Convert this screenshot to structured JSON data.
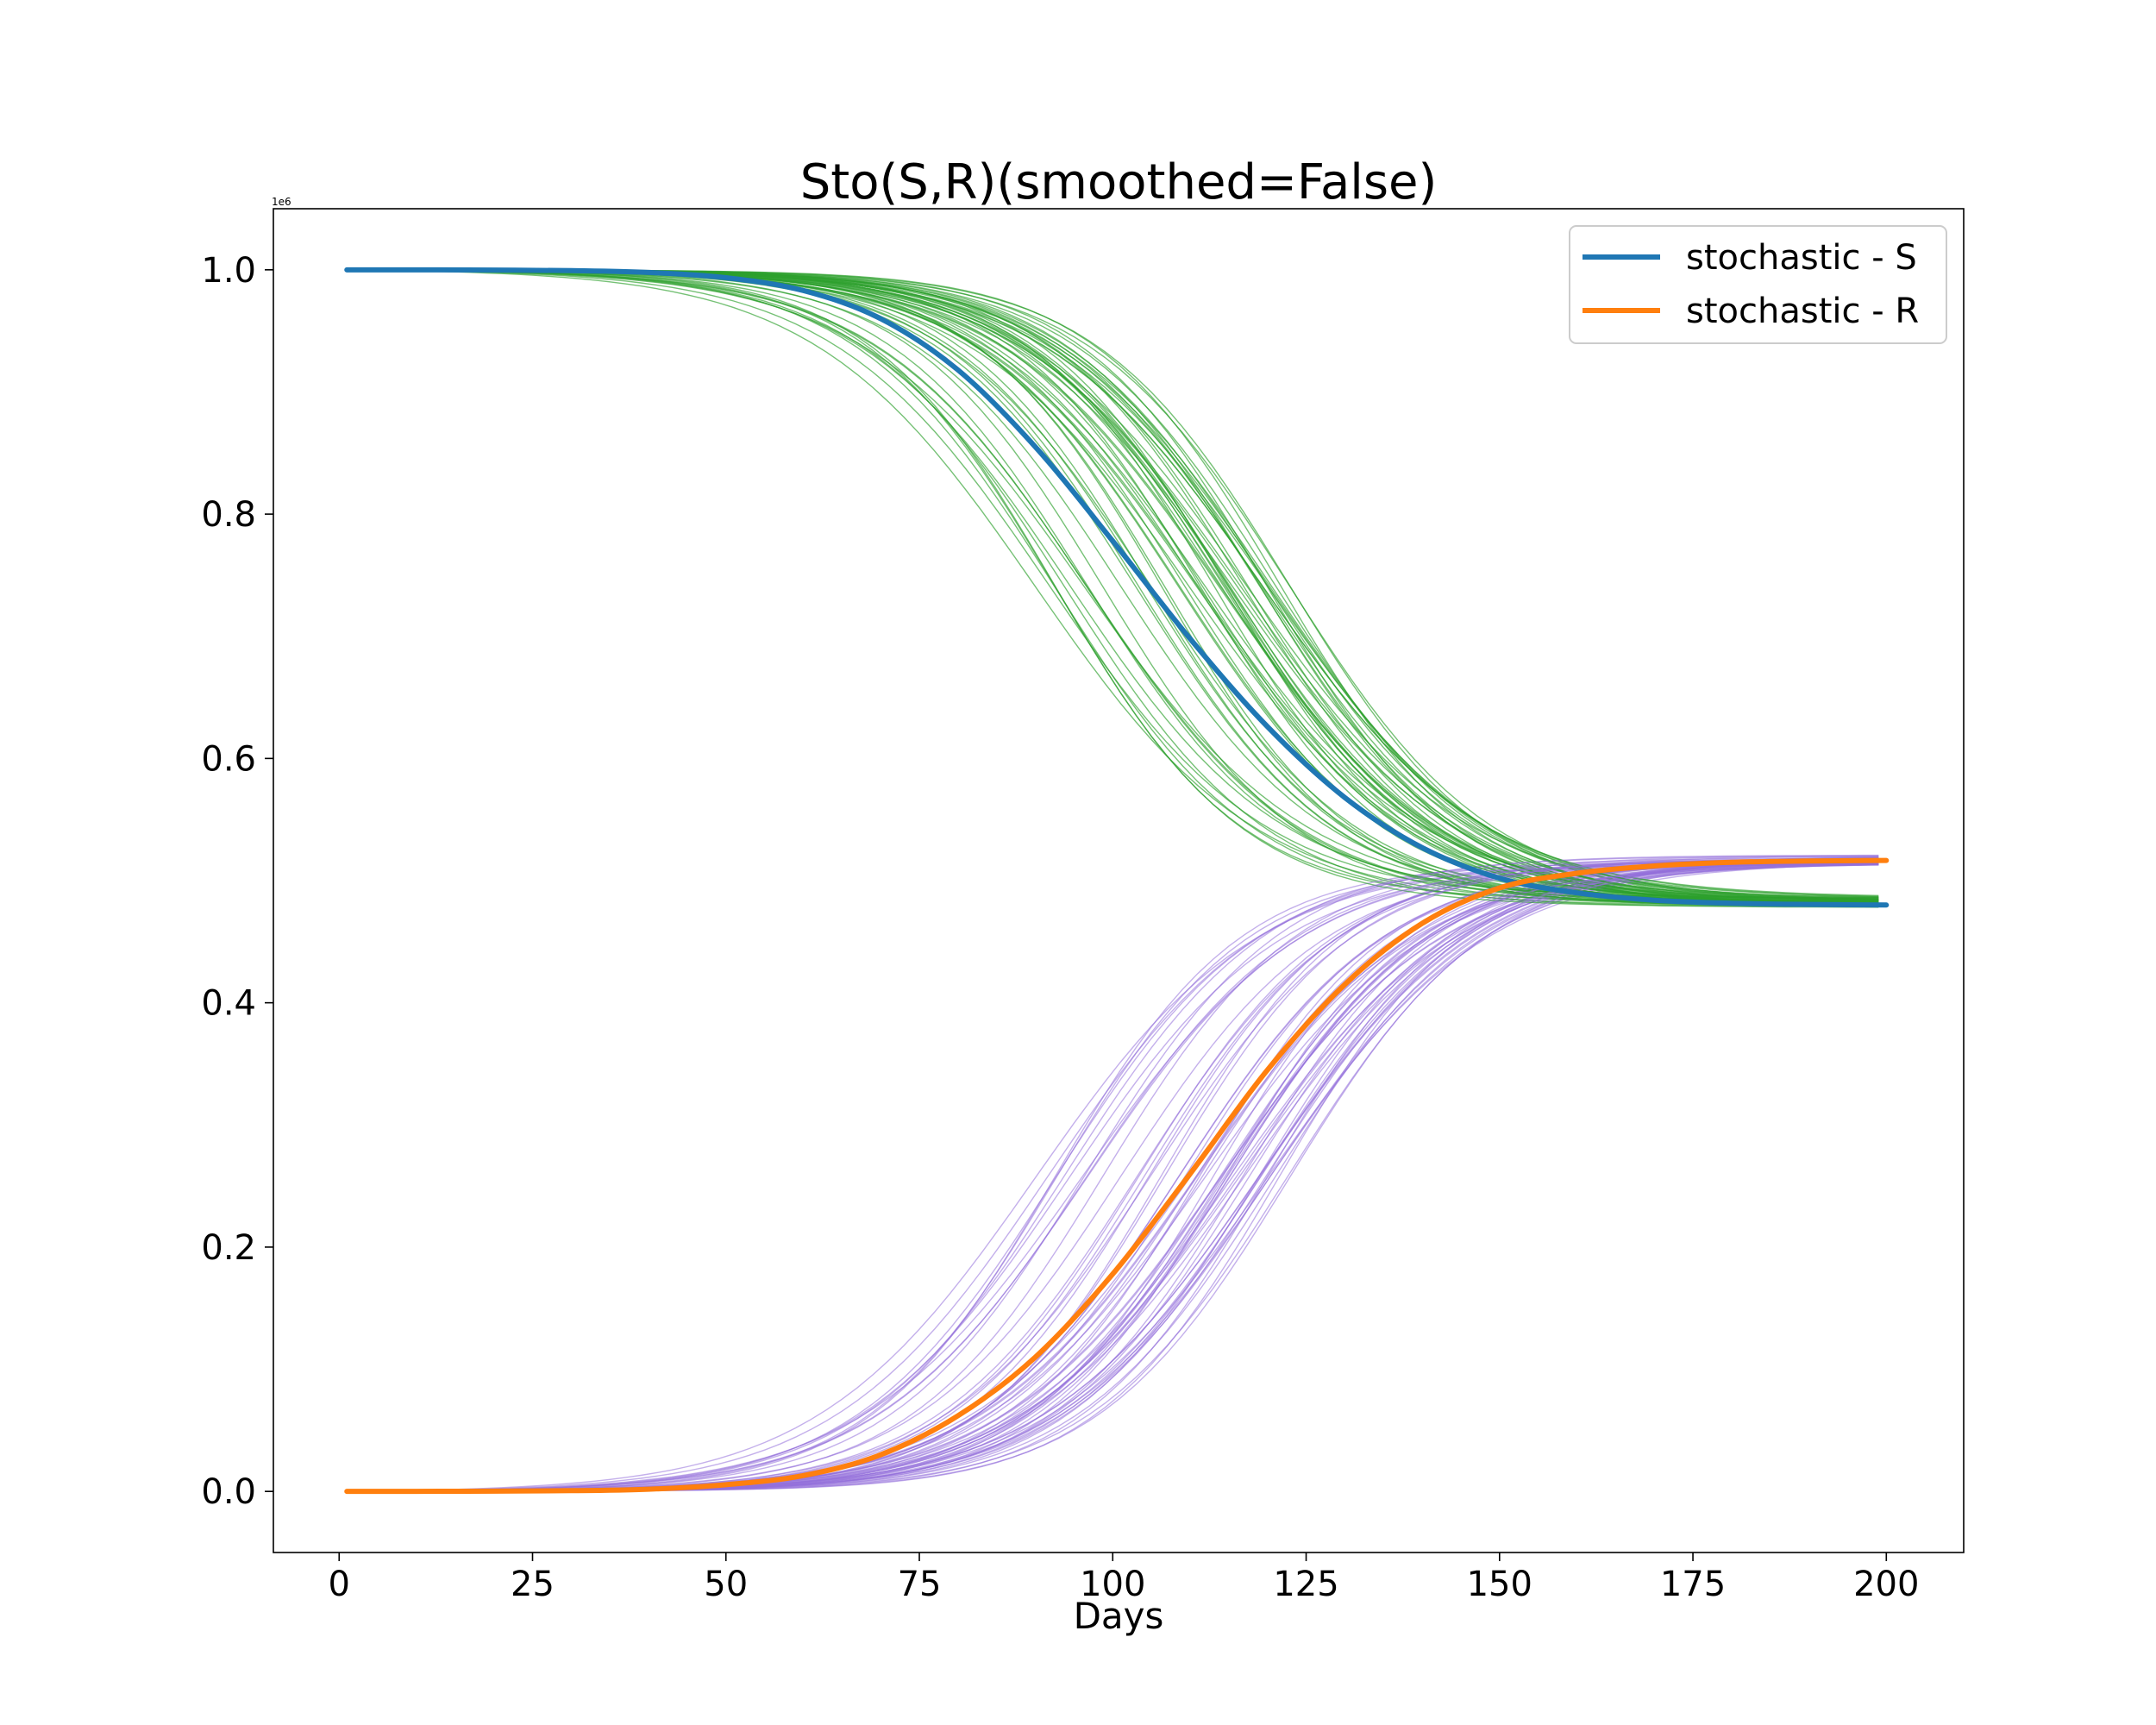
{
  "chart_data": {
    "type": "line",
    "title": "Sto(S,R)(smoothed=False)",
    "xlabel": "Days",
    "ylabel": "",
    "xlim": [
      -8.5,
      210
    ],
    "ylim": [
      -50000,
      1050000
    ],
    "xticks": [
      0,
      25,
      50,
      75,
      100,
      125,
      150,
      175,
      200
    ],
    "xtick_labels": [
      "0",
      "25",
      "50",
      "75",
      "100",
      "125",
      "150",
      "175",
      "200"
    ],
    "yticks": [
      0,
      200000,
      400000,
      600000,
      800000,
      1000000
    ],
    "ytick_labels": [
      "0.0",
      "0.2",
      "0.4",
      "0.6",
      "0.8",
      "1.0"
    ],
    "y_offset_label": "1e6",
    "grid": false,
    "legend_position": "top-right",
    "ensemble": {
      "runs": 60,
      "S_color": "#2ca02c",
      "R_color": "#9370db",
      "midpoint_range_days": [
        90,
        123
      ],
      "S_final_range": [
        478000,
        486000
      ],
      "R_final_range": [
        513000,
        521000
      ]
    },
    "series": [
      {
        "name": "stochastic - S",
        "color": "#1f77b4",
        "x": [
          1,
          10,
          20,
          30,
          40,
          50,
          60,
          70,
          80,
          90,
          100,
          110,
          120,
          130,
          140,
          150,
          160,
          170,
          180,
          190,
          200
        ],
        "y": [
          1000000,
          999950,
          999800,
          999300,
          997800,
          993500,
          983000,
          960000,
          918000,
          855000,
          778000,
          698000,
          626000,
          568000,
          527000,
          502000,
          490000,
          484000,
          481500,
          480500,
          480000
        ]
      },
      {
        "name": "stochastic - R",
        "color": "#ff7f0e",
        "x": [
          1,
          10,
          20,
          30,
          40,
          50,
          60,
          70,
          80,
          90,
          100,
          110,
          120,
          130,
          140,
          150,
          160,
          170,
          180,
          190,
          200
        ],
        "y": [
          0,
          30,
          200,
          600,
          1800,
          5500,
          13000,
          30000,
          62000,
          110000,
          178000,
          260000,
          345000,
          415000,
          465000,
          494000,
          506000,
          512000,
          515000,
          516000,
          516500
        ]
      }
    ]
  }
}
